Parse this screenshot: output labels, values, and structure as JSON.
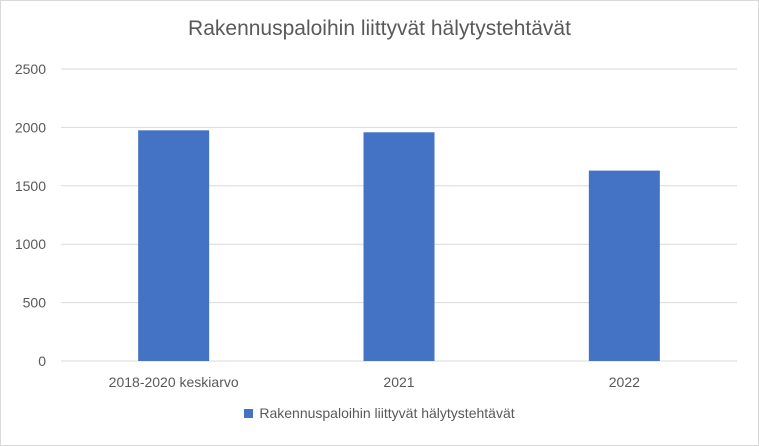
{
  "chart_data": {
    "type": "bar",
    "title": "Rakennuspaloihin liittyvät hälytystehtävät",
    "categories": [
      "2018-2020 keskiarvo",
      "2021",
      "2022"
    ],
    "series": [
      {
        "name": "Rakennuspaloihin liittyvät hälytystehtävät",
        "values": [
          1975,
          1958,
          1630
        ]
      }
    ],
    "y_ticks": [
      "0",
      "500",
      "1000",
      "1500",
      "2000",
      "2500"
    ],
    "ylim": [
      0,
      2500
    ],
    "xlabel": "",
    "ylabel": "",
    "grid": true,
    "legend_position": "bottom",
    "bar_color": "#4472c4",
    "grid_color": "#d9d9d9",
    "text_color": "#595959"
  }
}
